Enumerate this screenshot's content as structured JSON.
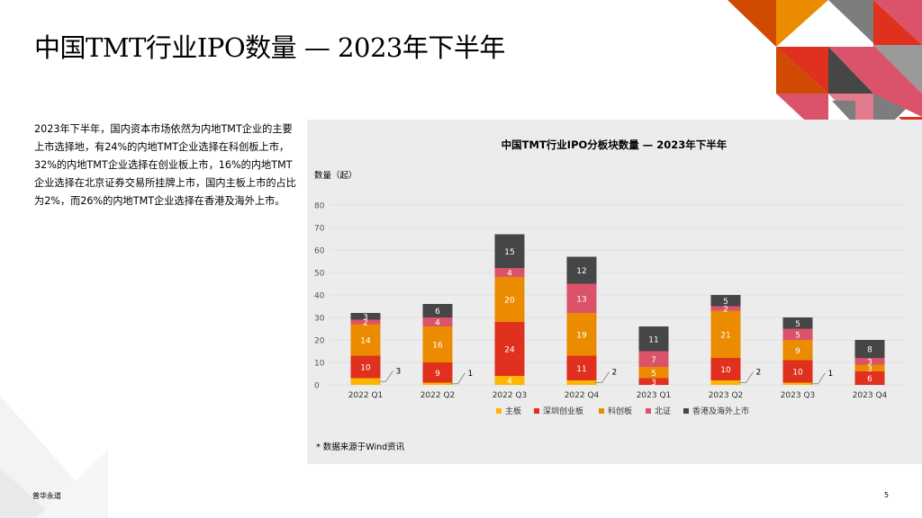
{
  "header": {
    "title": "中国TMT行业IPO数量 — 2023年下半年"
  },
  "body_text": "2023年下半年，国内资本市场依然为内地TMT企业的主要上市选择地，有24%的内地TMT企业选择在科创板上市，32%的内地TMT企业选择在创业板上市，16%的内地TMT企业选择在北京证券交易所挂牌上市，国内主板上市的占比为2%，而26%的内地TMT企业选择在香港及海外上市。",
  "chart_data": {
    "type": "bar",
    "stacked": true,
    "title": "中国TMT行业IPO分板块数量 — 2023年下半年",
    "ylabel": "数量（起）",
    "xlabel": "",
    "ylim": [
      0,
      80
    ],
    "yticks": [
      "0",
      "10",
      "20",
      "30",
      "40",
      "50",
      "60",
      "70",
      "80"
    ],
    "grid": true,
    "legend_position": "bottom",
    "categories": [
      "2022 Q1",
      "2022 Q2",
      "2022 Q3",
      "2022 Q4",
      "2023 Q1",
      "2023 Q2",
      "2023 Q3",
      "2023 Q4"
    ],
    "series": [
      {
        "name": "主板",
        "color": "#FFB600",
        "values": [
          3,
          1,
          4,
          2,
          0,
          2,
          1,
          0
        ]
      },
      {
        "name": "深圳创业板",
        "color": "#E0301E",
        "values": [
          10,
          9,
          24,
          11,
          3,
          10,
          10,
          6
        ]
      },
      {
        "name": "科创板",
        "color": "#EB8C00",
        "values": [
          14,
          16,
          20,
          19,
          5,
          21,
          9,
          3
        ]
      },
      {
        "name": "北证",
        "color": "#DB536A",
        "values": [
          2,
          4,
          4,
          13,
          7,
          2,
          5,
          3
        ]
      },
      {
        "name": "香港及海外上市",
        "color": "#464646",
        "values": [
          3,
          6,
          15,
          12,
          11,
          5,
          5,
          8
        ]
      }
    ],
    "data_labels": [
      {
        "category": "2022 Q1",
        "series": "主板",
        "text": "3",
        "callout": true
      },
      {
        "category": "2022 Q1",
        "series": "深圳创业板",
        "text": "10"
      },
      {
        "category": "2022 Q1",
        "series": "科创板",
        "text": "14"
      },
      {
        "category": "2022 Q1",
        "series": "北证",
        "text": "2"
      },
      {
        "category": "2022 Q1",
        "series": "香港及海外上市",
        "text": "3"
      },
      {
        "category": "2022 Q2",
        "series": "主板",
        "text": "1",
        "callout": true
      },
      {
        "category": "2022 Q2",
        "series": "深圳创业板",
        "text": "9"
      },
      {
        "category": "2022 Q2",
        "series": "科创板",
        "text": "16"
      },
      {
        "category": "2022 Q2",
        "series": "北证",
        "text": "4"
      },
      {
        "category": "2022 Q2",
        "series": "香港及海外上市",
        "text": "6"
      },
      {
        "category": "2022 Q3",
        "series": "主板",
        "text": "4"
      },
      {
        "category": "2022 Q3",
        "series": "深圳创业板",
        "text": "24"
      },
      {
        "category": "2022 Q3",
        "series": "科创板",
        "text": "20"
      },
      {
        "category": "2022 Q3",
        "series": "北证",
        "text": "4"
      },
      {
        "category": "2022 Q3",
        "series": "香港及海外上市",
        "text": "15"
      },
      {
        "category": "2022 Q4",
        "series": "主板",
        "text": "2",
        "callout": true
      },
      {
        "category": "2022 Q4",
        "series": "深圳创业板",
        "text": "11"
      },
      {
        "category": "2022 Q4",
        "series": "科创板",
        "text": "19"
      },
      {
        "category": "2022 Q4",
        "series": "北证",
        "text": "13"
      },
      {
        "category": "2022 Q4",
        "series": "香港及海外上市",
        "text": "12"
      },
      {
        "category": "2023 Q1",
        "series": "深圳创业板",
        "text": "3"
      },
      {
        "category": "2023 Q1",
        "series": "科创板",
        "text": "5"
      },
      {
        "category": "2023 Q1",
        "series": "北证",
        "text": "7"
      },
      {
        "category": "2023 Q1",
        "series": "香港及海外上市",
        "text": "11"
      },
      {
        "category": "2023 Q2",
        "series": "主板",
        "text": "2",
        "callout": true
      },
      {
        "category": "2023 Q2",
        "series": "深圳创业板",
        "text": "10"
      },
      {
        "category": "2023 Q2",
        "series": "科创板",
        "text": "21"
      },
      {
        "category": "2023 Q2",
        "series": "北证",
        "text": "2"
      },
      {
        "category": "2023 Q2",
        "series": "香港及海外上市",
        "text": "5"
      },
      {
        "category": "2023 Q3",
        "series": "主板",
        "text": "1",
        "callout": true
      },
      {
        "category": "2023 Q3",
        "series": "深圳创业板",
        "text": "10"
      },
      {
        "category": "2023 Q3",
        "series": "科创板",
        "text": "9"
      },
      {
        "category": "2023 Q3",
        "series": "北证",
        "text": "5"
      },
      {
        "category": "2023 Q3",
        "series": "香港及海外上市",
        "text": "5"
      },
      {
        "category": "2023 Q4",
        "series": "深圳创业板",
        "text": "6"
      },
      {
        "category": "2023 Q4",
        "series": "科创板",
        "text": "3"
      },
      {
        "category": "2023 Q4",
        "series": "北证",
        "text": "3"
      },
      {
        "category": "2023 Q4",
        "series": "香港及海外上市",
        "text": "8"
      }
    ]
  },
  "footnote": "* 数据来源于Wind资讯",
  "footer": {
    "company": "普华永道",
    "page_number": "5"
  },
  "decoration_colors": [
    "#D04A02",
    "#E0301E",
    "#DB536A",
    "#7D7D7D",
    "#464646",
    "#EB8C00"
  ]
}
